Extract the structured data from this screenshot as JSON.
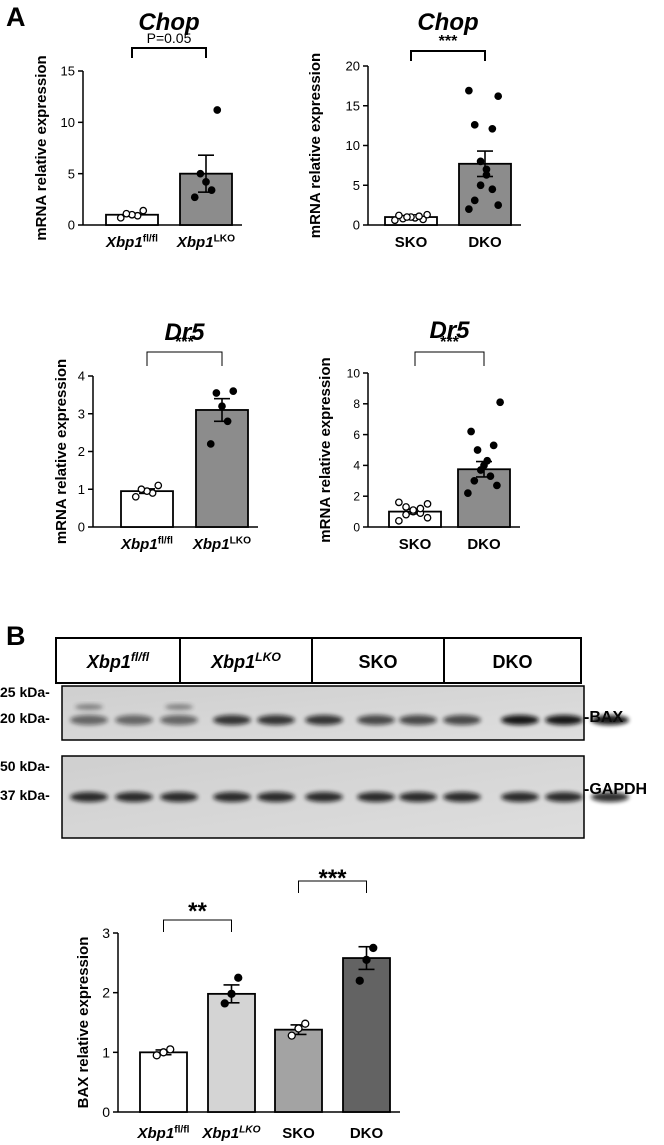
{
  "panel_labels": {
    "a": "A",
    "b": "B"
  },
  "blot": {
    "groups": [
      {
        "base": "Xbp1",
        "sup": "fl/fl",
        "italic_sup": true
      },
      {
        "base": "Xbp1",
        "sup": "LKO",
        "italic_sup": true
      },
      {
        "base": "SKO",
        "sup": ""
      },
      {
        "base": "DKO",
        "sup": ""
      }
    ],
    "bax_markers": [
      "25 kDa-",
      "20 kDa-"
    ],
    "gapdh_markers": [
      "50 kDa-",
      "37 kDa-"
    ],
    "bax_label": "-BAX",
    "gapdh_label": "-GAPDH"
  },
  "chart_data": [
    {
      "id": "chop1",
      "type": "bar",
      "title": "Chop",
      "ylabel": "mRNA relative expression",
      "ylim": [
        0,
        15
      ],
      "yticks": [
        0,
        5,
        10,
        15
      ],
      "categories": [
        {
          "base": "Xbp1",
          "sup": "fl/fl"
        },
        {
          "base": "Xbp1",
          "sup": "LKO"
        }
      ],
      "values": [
        1.0,
        5.0
      ],
      "errors": [
        0.15,
        1.8
      ],
      "points": [
        [
          0.7,
          0.9,
          1.0,
          1.1,
          1.4
        ],
        [
          2.7,
          3.4,
          4.2,
          5.0,
          11.2
        ]
      ],
      "fills": [
        "#ffffff",
        "#8c8c8c"
      ],
      "filled_points": [
        false,
        true
      ],
      "significance": "P=0.05",
      "bracket": "drop"
    },
    {
      "id": "chop2",
      "type": "bar",
      "title": "Chop",
      "ylabel": "mRNA relative expression",
      "ylim": [
        0,
        20
      ],
      "yticks": [
        0,
        5,
        10,
        15,
        20
      ],
      "categories": [
        {
          "base": "SKO",
          "sup": ""
        },
        {
          "base": "DKO",
          "sup": ""
        }
      ],
      "values": [
        1.0,
        7.7
      ],
      "errors": [
        0.1,
        1.6
      ],
      "points": [
        [
          0.6,
          0.7,
          0.8,
          0.9,
          1.0,
          1.0,
          1.1,
          1.2,
          1.3
        ],
        [
          2.0,
          2.5,
          3.1,
          4.5,
          5.0,
          6.3,
          7.0,
          8.0,
          12.1,
          12.6,
          16.2,
          16.9
        ]
      ],
      "fills": [
        "#ffffff",
        "#8c8c8c"
      ],
      "filled_points": [
        false,
        true
      ],
      "significance": "***",
      "bracket": "drop"
    },
    {
      "id": "dr5a",
      "type": "bar",
      "title": "Dr5",
      "ylabel": "mRNA relative expression",
      "ylim": [
        0,
        4
      ],
      "yticks": [
        0,
        1,
        2,
        3,
        4
      ],
      "categories": [
        {
          "base": "Xbp1",
          "sup": "fl/fl"
        },
        {
          "base": "Xbp1",
          "sup": "LKO"
        }
      ],
      "values": [
        0.95,
        3.1
      ],
      "errors": [
        0.06,
        0.3
      ],
      "points": [
        [
          0.8,
          0.9,
          0.95,
          1.0,
          1.1
        ],
        [
          2.2,
          2.8,
          3.2,
          3.55,
          3.6
        ]
      ],
      "fills": [
        "#ffffff",
        "#8c8c8c"
      ],
      "filled_points": [
        false,
        true
      ],
      "significance": "***",
      "bracket": "thin"
    },
    {
      "id": "dr5b",
      "type": "bar",
      "title": "Dr5",
      "ylabel": "mRNA relative expression",
      "ylim": [
        0,
        10
      ],
      "yticks": [
        0,
        2,
        4,
        6,
        8,
        10
      ],
      "categories": [
        {
          "base": "SKO",
          "sup": ""
        },
        {
          "base": "DKO",
          "sup": ""
        }
      ],
      "values": [
        1.0,
        3.75
      ],
      "errors": [
        0.15,
        0.5
      ],
      "points": [
        [
          0.4,
          0.6,
          0.8,
          0.9,
          1.0,
          1.1,
          1.2,
          1.3,
          1.5,
          1.6
        ],
        [
          2.2,
          2.7,
          3.0,
          3.3,
          3.7,
          4.0,
          4.3,
          5.0,
          5.3,
          6.2,
          8.1
        ]
      ],
      "fills": [
        "#ffffff",
        "#8c8c8c"
      ],
      "filled_points": [
        false,
        true
      ],
      "significance": "***",
      "bracket": "thin"
    },
    {
      "id": "bax",
      "type": "bar",
      "title": "",
      "ylabel": "BAX relative expression",
      "ylim": [
        0,
        3
      ],
      "yticks": [
        0,
        1,
        2,
        3
      ],
      "categories": [
        {
          "base": "Xbp1",
          "sup": "fl/fl"
        },
        {
          "base": "Xbp1",
          "sup": "LKO",
          "italic_sup": true
        },
        {
          "base": "SKO",
          "sup": ""
        },
        {
          "base": "DKO",
          "sup": ""
        }
      ],
      "values": [
        1.0,
        1.98,
        1.38,
        2.58
      ],
      "errors": [
        0.04,
        0.15,
        0.08,
        0.19
      ],
      "points": [
        [
          0.95,
          1.0,
          1.05
        ],
        [
          1.82,
          1.98,
          2.25
        ],
        [
          1.28,
          1.4,
          1.48
        ],
        [
          2.2,
          2.55,
          2.75
        ]
      ],
      "fills": [
        "#ffffff",
        "#d4d4d4",
        "#a3a3a3",
        "#636363"
      ],
      "filled_points": [
        false,
        true,
        false,
        true
      ],
      "comparisons": [
        {
          "from": 0,
          "to": 1,
          "label": "**"
        },
        {
          "from": 2,
          "to": 3,
          "label": "***"
        }
      ]
    }
  ]
}
